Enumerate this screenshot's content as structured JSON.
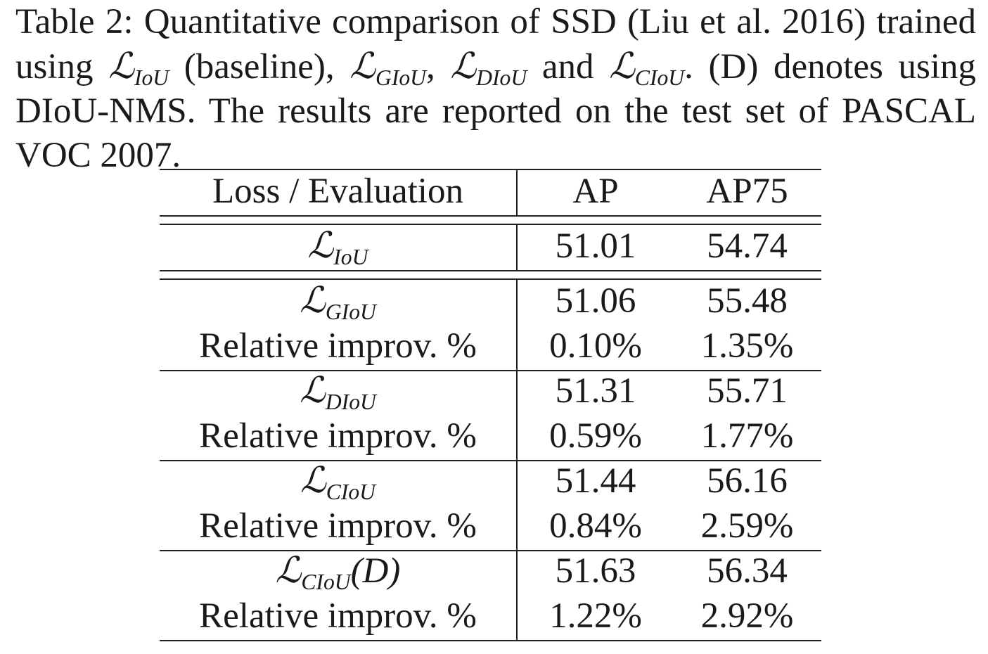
{
  "caption": {
    "part1": "Table 2: Quantitative comparison of SSD (Liu et al. 2016) trained using ",
    "l_iou_sym": "ℒ",
    "l_iou_sub": "IoU",
    "part2": " (baseline), ",
    "l_giou_sym": "ℒ",
    "l_giou_sub": "GIoU",
    "part3": ", ",
    "l_diou_sym": "ℒ",
    "l_diou_sub": "DIoU",
    "part4": " and ",
    "l_ciou_sym": "ℒ",
    "l_ciou_sub": "CIoU",
    "part5": ". (D) denotes using DIoU-NMS. The results are reported on the test set of PASCAL VOC 2007."
  },
  "table": {
    "headers": [
      "Loss / Evaluation",
      "AP",
      "AP75"
    ],
    "rows": [
      {
        "sym": "ℒ",
        "sub": "IoU",
        "suffix": "",
        "ap": "51.01",
        "ap75": "54.74"
      },
      {
        "sym": "ℒ",
        "sub": "GIoU",
        "suffix": "",
        "ap": "51.06",
        "ap75": "55.48"
      },
      {
        "label": "Relative improv. %",
        "ap": "0.10%",
        "ap75": "1.35%"
      },
      {
        "sym": "ℒ",
        "sub": "DIoU",
        "suffix": "",
        "ap": "51.31",
        "ap75": "55.71"
      },
      {
        "label": "Relative improv. %",
        "ap": "0.59%",
        "ap75": "1.77%"
      },
      {
        "sym": "ℒ",
        "sub": "CIoU",
        "suffix": "",
        "ap": "51.44",
        "ap75": "56.16"
      },
      {
        "label": "Relative improv. %",
        "ap": "0.84%",
        "ap75": "2.59%"
      },
      {
        "sym": "ℒ",
        "sub": "CIoU",
        "suffix": "(D)",
        "ap": "51.63",
        "ap75": "56.34"
      },
      {
        "label": "Relative improv. %",
        "ap": "1.22%",
        "ap75": "2.92%"
      }
    ]
  }
}
